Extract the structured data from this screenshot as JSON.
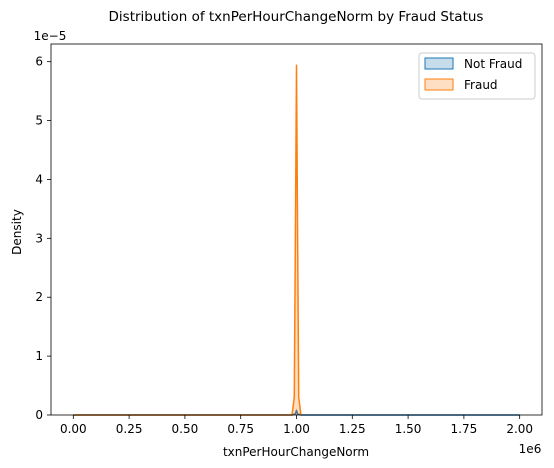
{
  "chart_data": {
    "type": "area",
    "title": "Distribution of txnPerHourChangeNorm by Fraud Status",
    "xlabel": "txnPerHourChangeNorm",
    "ylabel": "Density",
    "x_offset_text": "1e6",
    "y_offset_text": "1e−5",
    "xlim": [
      -0.1,
      2.1
    ],
    "ylim": [
      0,
      6.3
    ],
    "x_ticks": [
      0.0,
      0.25,
      0.5,
      0.75,
      1.0,
      1.25,
      1.5,
      1.75,
      2.0
    ],
    "x_tick_labels": [
      "0.00",
      "0.25",
      "0.50",
      "0.75",
      "1.00",
      "1.25",
      "1.50",
      "1.75",
      "2.00"
    ],
    "y_ticks": [
      0,
      1,
      2,
      3,
      4,
      5,
      6
    ],
    "y_tick_labels": [
      "0",
      "1",
      "2",
      "3",
      "4",
      "5",
      "6"
    ],
    "grid": false,
    "legend_position": "top-right",
    "series": [
      {
        "name": "Not Fraud",
        "color": "#1f77b4",
        "fill": "#1f77b4",
        "fill_opacity": 0.25,
        "x": [
          0.0,
          0.98,
          0.995,
          1.0,
          1.005,
          1.02,
          2.0
        ],
        "y": [
          0.0,
          0.0,
          0.02,
          0.08,
          0.02,
          0.0,
          0.0
        ]
      },
      {
        "name": "Fraud",
        "color": "#ff7f0e",
        "fill": "#ff7f0e",
        "fill_opacity": 0.25,
        "x": [
          0.0,
          0.98,
          0.99,
          0.995,
          1.0,
          1.005,
          1.01,
          1.02
        ],
        "y": [
          0.0,
          0.0,
          0.3,
          3.0,
          5.94,
          3.0,
          0.3,
          0.0
        ]
      }
    ]
  }
}
